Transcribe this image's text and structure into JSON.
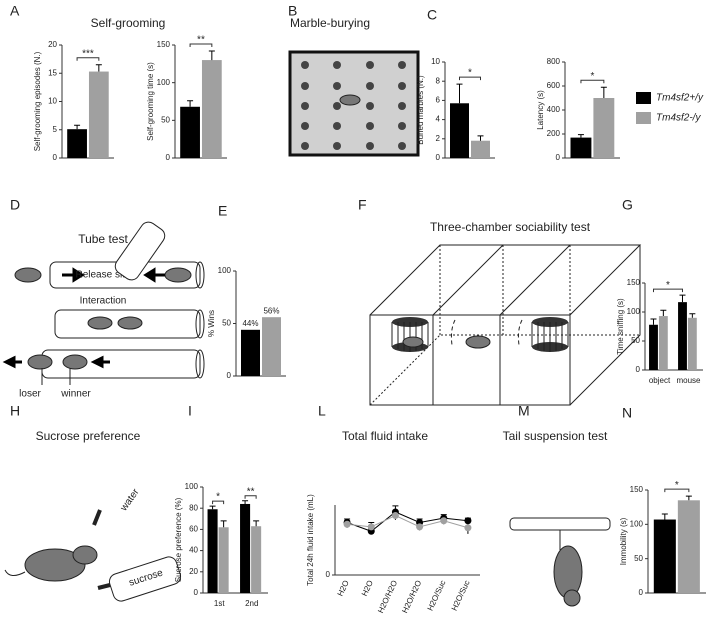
{
  "panels": [
    {
      "letter": "A",
      "title": "Self-grooming"
    },
    {
      "letter": "B",
      "title": "Marble-burying"
    },
    {
      "letter": "C"
    },
    {
      "letter": "D",
      "title": "Tube test"
    },
    {
      "letter": "E"
    },
    {
      "letter": "F",
      "title": "Three-chamber sociability test"
    },
    {
      "letter": "G"
    },
    {
      "letter": "H",
      "title": "Sucrose preference"
    },
    {
      "letter": "I"
    },
    {
      "letter": "L",
      "title": "Total fluid intake"
    },
    {
      "letter": "M",
      "title": "Tail suspension test"
    },
    {
      "letter": "N"
    }
  ],
  "diagrams": {
    "tube_test": [
      "Release site",
      "Interaction",
      "loser",
      "winner"
    ],
    "sucrose": [
      "water",
      "sucrose"
    ]
  },
  "legend": [
    {
      "name": "Tm4sf2+/y",
      "color": "#000000"
    },
    {
      "name": "Tm4sf2-/y",
      "color": "#a0a0a0"
    }
  ],
  "chart_data": [
    {
      "type": "bar",
      "ylabel": "Self-grooming episodes (N.)",
      "values": [
        5.1,
        15.3
      ],
      "errors": [
        0.7,
        1.2
      ],
      "colors": [
        "#000000",
        "#a0a0a0"
      ],
      "ylim": [
        0,
        20
      ],
      "yticks": [
        0,
        5,
        10,
        15,
        20
      ],
      "significance": "***"
    },
    {
      "type": "bar",
      "ylabel": "Self-grooming time (s)",
      "values": [
        68,
        130
      ],
      "errors": [
        8,
        12
      ],
      "colors": [
        "#000000",
        "#a0a0a0"
      ],
      "ylim": [
        0,
        150
      ],
      "yticks": [
        0,
        50,
        100,
        150
      ],
      "significance": "**"
    },
    {
      "type": "bar",
      "ylabel": "Buried marbles (N.)",
      "values": [
        5.7,
        1.8
      ],
      "errors": [
        2.0,
        0.5
      ],
      "colors": [
        "#000000",
        "#a0a0a0"
      ],
      "ylim": [
        0,
        10
      ],
      "yticks": [
        0,
        2,
        4,
        6,
        8,
        10
      ],
      "significance": "*"
    },
    {
      "type": "bar",
      "ylabel": "Latency (s)",
      "values": [
        170,
        500
      ],
      "errors": [
        25,
        90
      ],
      "colors": [
        "#000000",
        "#a0a0a0"
      ],
      "ylim": [
        0,
        800
      ],
      "yticks": [
        0,
        200,
        400,
        600,
        800
      ],
      "significance": "*"
    },
    {
      "type": "bar",
      "ylabel": "% Wins",
      "values": [
        44,
        56
      ],
      "value_labels": [
        "44%",
        "56%"
      ],
      "colors": [
        "#000000",
        "#a0a0a0"
      ],
      "ylim": [
        0,
        100
      ],
      "yticks": [
        0,
        50,
        100
      ]
    },
    {
      "type": "bar",
      "ylabel": "Time sniffing (s)",
      "categories": [
        "object",
        "mouse"
      ],
      "series": [
        {
          "color": "#000000",
          "values": [
            78,
            117
          ],
          "errors": [
            10,
            12
          ]
        },
        {
          "color": "#a0a0a0",
          "values": [
            93,
            90
          ],
          "errors": [
            10,
            7
          ]
        }
      ],
      "ylim": [
        0,
        150
      ],
      "yticks": [
        0,
        50,
        100,
        150
      ],
      "significance": "*"
    },
    {
      "type": "bar",
      "ylabel": "Sucrose preference (%)",
      "categories": [
        "1st",
        "2nd"
      ],
      "series": [
        {
          "color": "#000000",
          "values": [
            79,
            84
          ],
          "errors": [
            3,
            3
          ]
        },
        {
          "color": "#a0a0a0",
          "values": [
            62,
            63
          ],
          "errors": [
            6,
            5
          ]
        }
      ],
      "ylim": [
        0,
        100
      ],
      "yticks": [
        0,
        20,
        40,
        60,
        80,
        100
      ],
      "significance": [
        "*",
        "**"
      ]
    },
    {
      "type": "line",
      "ylabel": "Total 24h fluid intake (mL)",
      "categories": [
        "H2O",
        "H2O",
        "H2O/H2O",
        "H2O/H2O",
        "H2O/Suc",
        "H2O/Suc"
      ],
      "series": [
        {
          "color": "#000000",
          "values": [
            6.0,
            5.0,
            7.2,
            6.0,
            6.5,
            6.2
          ],
          "errors": [
            0.4,
            0.3,
            0.7,
            0.4,
            0.4,
            0.3
          ]
        },
        {
          "color": "#a0a0a0",
          "values": [
            5.8,
            5.5,
            6.8,
            5.5,
            6.2,
            5.4
          ],
          "errors": [
            0.4,
            0.5,
            0.5,
            0.4,
            0.4,
            0.7
          ]
        }
      ],
      "ylim": [
        0,
        8
      ],
      "yticks": [
        0
      ]
    },
    {
      "type": "bar",
      "ylabel": "Immobility (s)",
      "values": [
        107,
        135
      ],
      "errors": [
        8,
        6
      ],
      "colors": [
        "#000000",
        "#a0a0a0"
      ],
      "ylim": [
        0,
        150
      ],
      "yticks": [
        0,
        50,
        100,
        150
      ],
      "significance": "*"
    }
  ]
}
